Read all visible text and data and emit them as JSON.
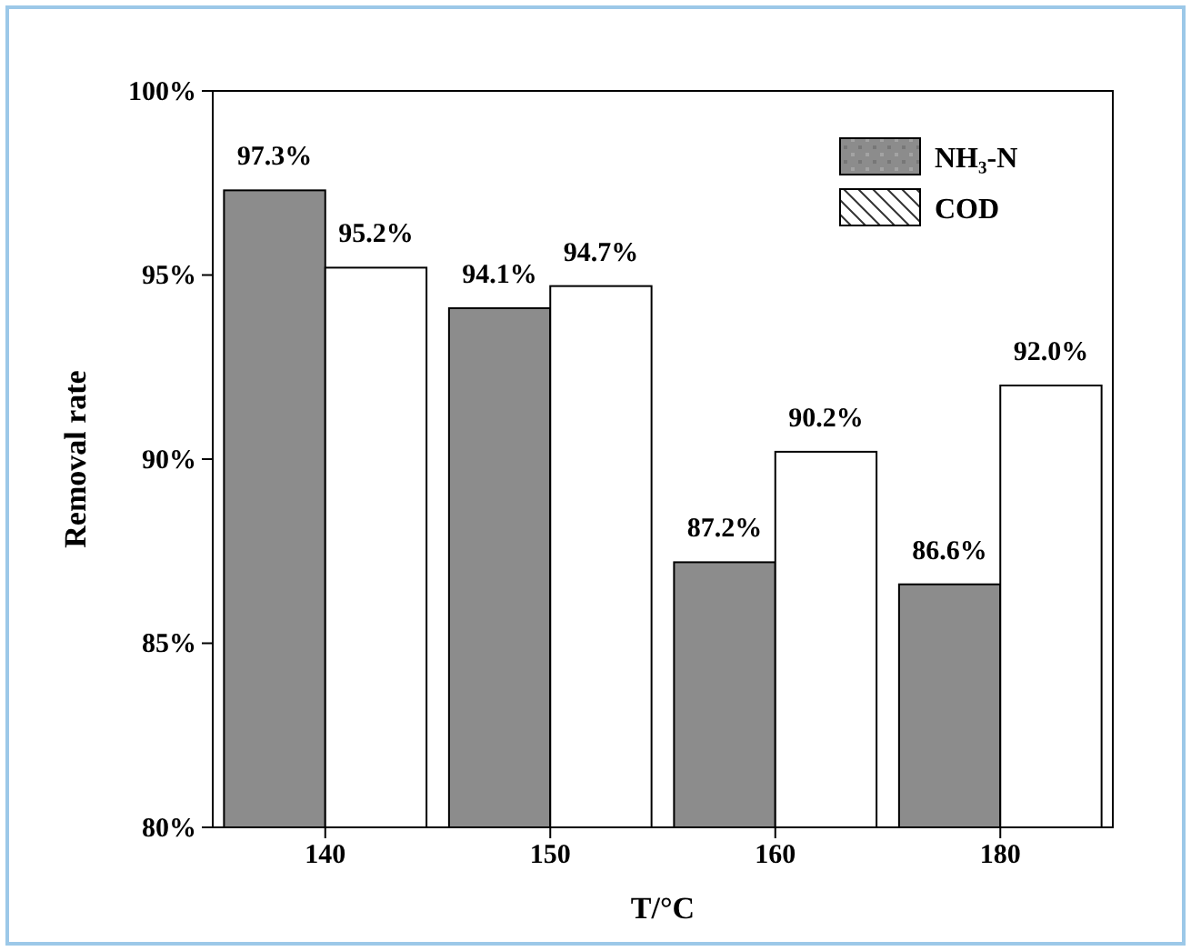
{
  "chart_data": {
    "type": "bar",
    "xlabel": "T/°C",
    "ylabel": "Removal rate",
    "categories": [
      "140",
      "150",
      "160",
      "180"
    ],
    "series": [
      {
        "name": "NH₃-N",
        "color": "#8c8c8c",
        "values": [
          97.3,
          94.1,
          87.2,
          86.6
        ],
        "value_labels": [
          "97.3%",
          "94.1%",
          "87.2%",
          "86.6%"
        ]
      },
      {
        "name": "COD",
        "color": "#ffffff",
        "values": [
          95.2,
          94.7,
          90.2,
          92.0
        ],
        "value_labels": [
          "95.2%",
          "94.7%",
          "90.2%",
          "92.0%"
        ]
      }
    ],
    "ylim": [
      80,
      100
    ],
    "yticks": [
      {
        "value": 80,
        "label": "80%"
      },
      {
        "value": 85,
        "label": "85%"
      },
      {
        "value": 90,
        "label": "90%"
      },
      {
        "value": 95,
        "label": "95%"
      },
      {
        "value": 100,
        "label": "100%"
      }
    ],
    "legend": "top right"
  }
}
